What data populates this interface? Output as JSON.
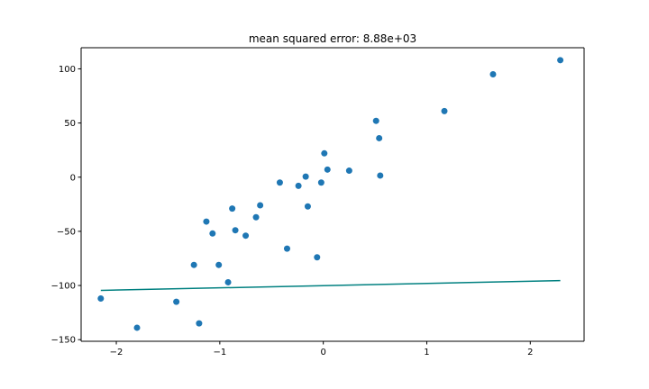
{
  "chart_data": {
    "type": "scatter",
    "title": "mean squared error: 8.88e+03",
    "xlabel": "",
    "ylabel": "",
    "xlim": [
      -2.34,
      2.52
    ],
    "ylim": [
      -151.5,
      119.5
    ],
    "xticks": [
      -2,
      -1,
      0,
      1,
      2
    ],
    "yticks": [
      -150,
      -100,
      -50,
      0,
      50,
      100
    ],
    "xtick_labels": [
      "−2",
      "−1",
      "0",
      "1",
      "2"
    ],
    "ytick_labels": [
      "−150",
      "−100",
      "−50",
      "0",
      "50",
      "100"
    ],
    "grid": false,
    "colors": {
      "points": "#1f77b4",
      "line": "#008080",
      "axes": "#000000",
      "background": "#ffffff"
    },
    "series": [
      {
        "type": "scatter",
        "points": [
          [
            -2.15,
            -112
          ],
          [
            -1.8,
            -139
          ],
          [
            -1.42,
            -115
          ],
          [
            -1.25,
            -81
          ],
          [
            -1.2,
            -135
          ],
          [
            -1.13,
            -41
          ],
          [
            -1.07,
            -52
          ],
          [
            -1.01,
            -81
          ],
          [
            -0.92,
            -97
          ],
          [
            -0.88,
            -29
          ],
          [
            -0.85,
            -49
          ],
          [
            -0.75,
            -54
          ],
          [
            -0.65,
            -37
          ],
          [
            -0.61,
            -26
          ],
          [
            -0.42,
            -5
          ],
          [
            -0.35,
            -66
          ],
          [
            -0.24,
            -8
          ],
          [
            -0.17,
            0.5
          ],
          [
            -0.15,
            -27
          ],
          [
            -0.06,
            -74
          ],
          [
            -0.02,
            -5
          ],
          [
            0.01,
            22
          ],
          [
            0.04,
            7
          ],
          [
            0.25,
            6
          ],
          [
            0.51,
            52
          ],
          [
            0.54,
            36
          ],
          [
            0.55,
            1.5
          ],
          [
            1.17,
            61
          ],
          [
            1.64,
            95
          ],
          [
            2.29,
            108
          ]
        ]
      },
      {
        "type": "line",
        "points": [
          [
            -2.15,
            -104.5
          ],
          [
            2.29,
            -95.5
          ]
        ]
      }
    ]
  }
}
